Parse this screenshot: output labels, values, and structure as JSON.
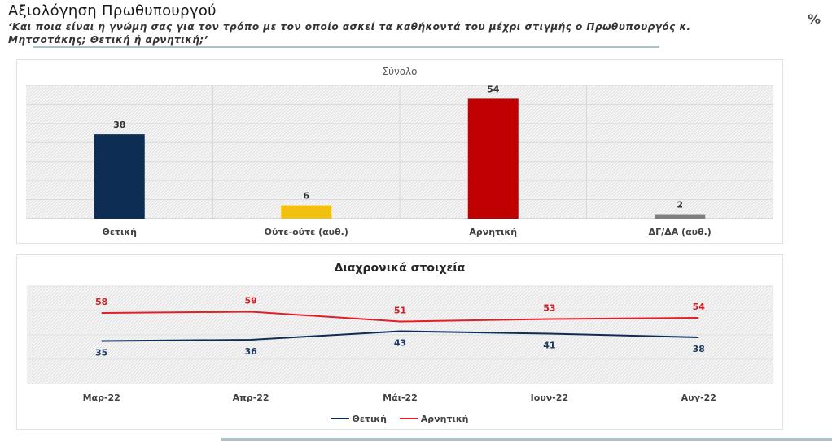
{
  "header": {
    "title": "Αξιολόγηση Πρωθυπουργού",
    "subtitle": "‘Και ποια είναι η γνώμη σας για τον τρόπο με τον οποίο ασκεί τα καθήκοντά του μέχρι στιγμής ο Πρωθυπουργός κ. Μητσοτάκης; Θετική ή αρνητική;’",
    "unit": "%"
  },
  "chart_data": [
    {
      "type": "bar",
      "title": "Σύνολο",
      "categories": [
        "Θετική",
        "Ούτε-ούτε (αυθ.)",
        "Αρνητική",
        "ΔΓ/ΔΑ (αυθ.)"
      ],
      "values": [
        38,
        6,
        54,
        2
      ],
      "colors": [
        "#0d2d55",
        "#f2c10f",
        "#c00000",
        "#7f7f7f"
      ],
      "ylim": [
        0,
        60
      ],
      "grid": true
    },
    {
      "type": "line",
      "title": "Διαχρονικά στοιχεία",
      "categories": [
        "Μαρ-22",
        "Απρ-22",
        "Μάι-22",
        "Ιουν-22",
        "Αυγ-22"
      ],
      "series": [
        {
          "name": "Θετική",
          "values": [
            35,
            36,
            43,
            41,
            38
          ],
          "color": "#0d2d55"
        },
        {
          "name": "Αρνητική",
          "values": [
            58,
            59,
            51,
            53,
            54
          ],
          "color": "#e31e24"
        }
      ],
      "ylim": [
        0,
        80
      ],
      "legend": "bottom",
      "grid": true
    }
  ]
}
